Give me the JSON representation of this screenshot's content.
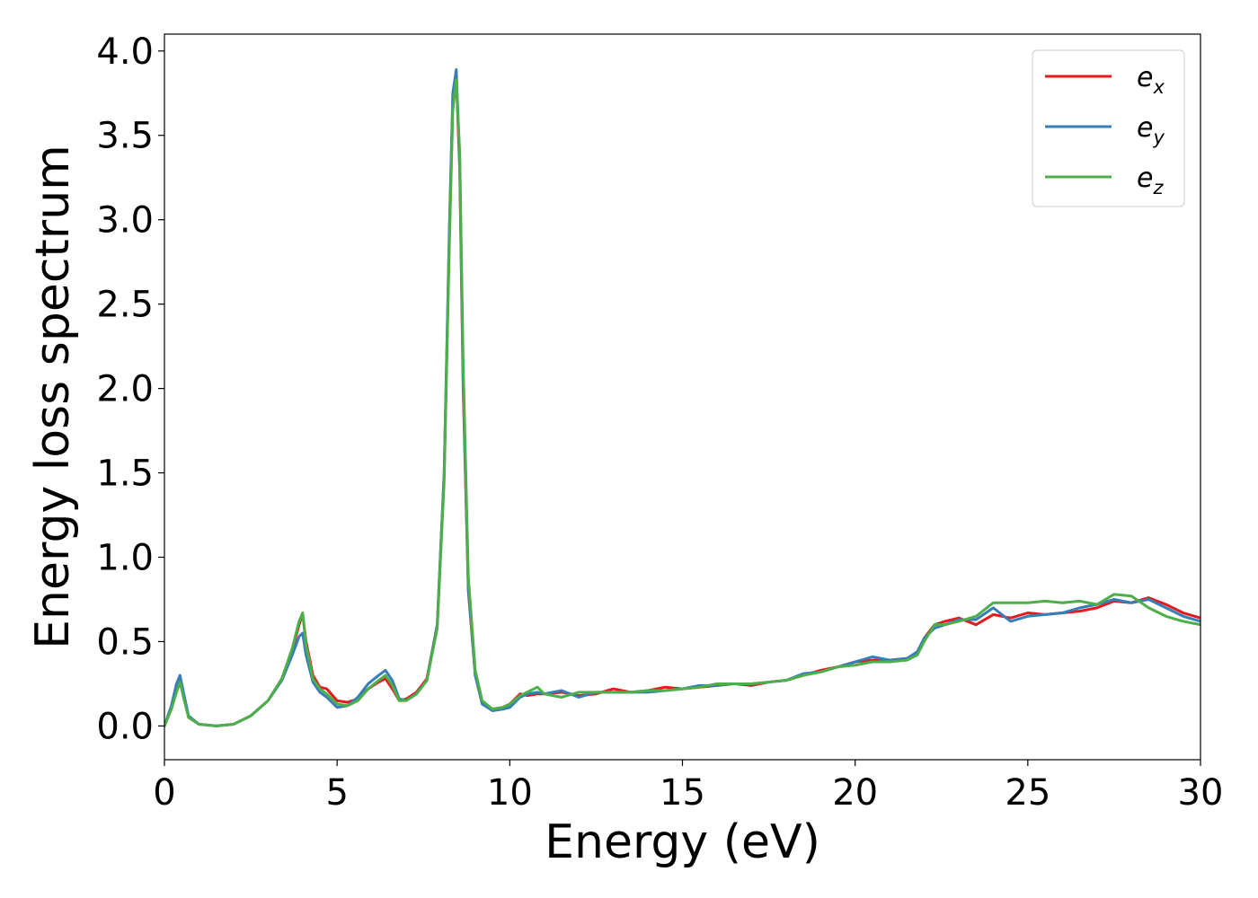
{
  "chart_data": {
    "type": "line",
    "title": "",
    "xlabel": "Energy (eV)",
    "ylabel": "Energy loss spectrum",
    "xlim": [
      0,
      30
    ],
    "ylim": [
      -0.2,
      4.1
    ],
    "xticks": [
      0,
      5,
      10,
      15,
      20,
      25,
      30
    ],
    "xtick_labels": [
      "0",
      "5",
      "10",
      "15",
      "20",
      "25",
      "30"
    ],
    "yticks": [
      0.0,
      0.5,
      1.0,
      1.5,
      2.0,
      2.5,
      3.0,
      3.5,
      4.0
    ],
    "ytick_labels": [
      "0.0",
      "0.5",
      "1.0",
      "1.5",
      "2.0",
      "2.5",
      "3.0",
      "3.5",
      "4.0"
    ],
    "grid": false,
    "legend_position": "top-right",
    "series": [
      {
        "name": "e_x",
        "legend_base": "e",
        "legend_sub": "x",
        "color": "#e41a1c",
        "x": [
          0,
          0.2,
          0.35,
          0.45,
          0.55,
          0.7,
          1.0,
          1.5,
          2.0,
          2.5,
          3.0,
          3.4,
          3.7,
          3.9,
          4.0,
          4.1,
          4.3,
          4.5,
          4.7,
          5.0,
          5.3,
          5.6,
          5.9,
          6.2,
          6.4,
          6.6,
          6.8,
          7.0,
          7.3,
          7.6,
          7.9,
          8.1,
          8.25,
          8.35,
          8.45,
          8.55,
          8.65,
          8.8,
          9.0,
          9.2,
          9.5,
          9.8,
          10.0,
          10.3,
          10.5,
          10.8,
          11.0,
          11.5,
          12.0,
          12.5,
          13.0,
          13.5,
          14.0,
          14.5,
          15.0,
          15.5,
          16.0,
          16.5,
          17.0,
          17.5,
          18.0,
          18.5,
          19.0,
          19.5,
          20.0,
          20.5,
          21.0,
          21.5,
          21.8,
          22.0,
          22.3,
          22.6,
          23.0,
          23.5,
          24.0,
          24.5,
          25.0,
          25.5,
          26.0,
          26.5,
          27.0,
          27.5,
          28.0,
          28.5,
          29.0,
          29.5,
          30.0
        ],
        "values": [
          0.0,
          0.1,
          0.22,
          0.27,
          0.18,
          0.05,
          0.01,
          0.0,
          0.01,
          0.06,
          0.15,
          0.28,
          0.45,
          0.6,
          0.67,
          0.5,
          0.3,
          0.23,
          0.22,
          0.15,
          0.14,
          0.16,
          0.22,
          0.26,
          0.28,
          0.22,
          0.15,
          0.16,
          0.2,
          0.28,
          0.6,
          1.5,
          2.9,
          3.7,
          3.85,
          3.3,
          2.0,
          0.8,
          0.3,
          0.14,
          0.1,
          0.11,
          0.13,
          0.19,
          0.18,
          0.19,
          0.19,
          0.2,
          0.18,
          0.19,
          0.22,
          0.2,
          0.21,
          0.23,
          0.22,
          0.23,
          0.24,
          0.25,
          0.24,
          0.26,
          0.27,
          0.3,
          0.33,
          0.35,
          0.38,
          0.39,
          0.39,
          0.4,
          0.43,
          0.52,
          0.6,
          0.62,
          0.64,
          0.6,
          0.66,
          0.64,
          0.67,
          0.66,
          0.67,
          0.68,
          0.7,
          0.74,
          0.73,
          0.76,
          0.72,
          0.67,
          0.64
        ]
      },
      {
        "name": "e_y",
        "legend_base": "e",
        "legend_sub": "y",
        "color": "#377eb8",
        "x": [
          0,
          0.2,
          0.35,
          0.45,
          0.55,
          0.7,
          1.0,
          1.5,
          2.0,
          2.5,
          3.0,
          3.4,
          3.7,
          3.9,
          4.0,
          4.1,
          4.3,
          4.5,
          4.7,
          5.0,
          5.3,
          5.6,
          5.9,
          6.2,
          6.4,
          6.6,
          6.8,
          7.0,
          7.3,
          7.6,
          7.9,
          8.1,
          8.25,
          8.35,
          8.45,
          8.55,
          8.65,
          8.8,
          9.0,
          9.2,
          9.5,
          9.8,
          10.0,
          10.3,
          10.5,
          10.8,
          11.0,
          11.5,
          12.0,
          12.5,
          13.0,
          13.5,
          14.0,
          14.5,
          15.0,
          15.5,
          16.0,
          16.5,
          17.0,
          17.5,
          18.0,
          18.5,
          19.0,
          19.5,
          20.0,
          20.5,
          21.0,
          21.5,
          21.8,
          22.0,
          22.3,
          22.6,
          23.0,
          23.5,
          24.0,
          24.5,
          25.0,
          25.5,
          26.0,
          26.5,
          27.0,
          27.5,
          28.0,
          28.5,
          29.0,
          29.5,
          30.0
        ],
        "values": [
          0.0,
          0.12,
          0.25,
          0.3,
          0.2,
          0.06,
          0.01,
          0.0,
          0.01,
          0.06,
          0.15,
          0.27,
          0.42,
          0.53,
          0.55,
          0.42,
          0.26,
          0.2,
          0.17,
          0.11,
          0.12,
          0.17,
          0.25,
          0.3,
          0.33,
          0.27,
          0.16,
          0.15,
          0.19,
          0.27,
          0.6,
          1.5,
          2.95,
          3.75,
          3.89,
          3.35,
          2.05,
          0.82,
          0.3,
          0.13,
          0.09,
          0.1,
          0.11,
          0.17,
          0.19,
          0.2,
          0.19,
          0.21,
          0.17,
          0.2,
          0.2,
          0.2,
          0.2,
          0.21,
          0.22,
          0.24,
          0.24,
          0.25,
          0.25,
          0.26,
          0.27,
          0.31,
          0.32,
          0.35,
          0.38,
          0.41,
          0.39,
          0.4,
          0.44,
          0.52,
          0.58,
          0.6,
          0.63,
          0.63,
          0.7,
          0.62,
          0.65,
          0.66,
          0.67,
          0.7,
          0.72,
          0.75,
          0.73,
          0.75,
          0.7,
          0.65,
          0.62
        ]
      },
      {
        "name": "e_z",
        "legend_base": "e",
        "legend_sub": "z",
        "color": "#4daf4a",
        "x": [
          0,
          0.2,
          0.35,
          0.45,
          0.55,
          0.7,
          1.0,
          1.5,
          2.0,
          2.5,
          3.0,
          3.4,
          3.7,
          3.9,
          4.0,
          4.1,
          4.3,
          4.5,
          4.7,
          5.0,
          5.3,
          5.6,
          5.9,
          6.2,
          6.4,
          6.6,
          6.8,
          7.0,
          7.3,
          7.6,
          7.9,
          8.1,
          8.25,
          8.35,
          8.45,
          8.55,
          8.65,
          8.8,
          9.0,
          9.2,
          9.5,
          9.8,
          10.0,
          10.3,
          10.5,
          10.8,
          11.0,
          11.5,
          12.0,
          12.5,
          13.0,
          13.5,
          14.0,
          14.5,
          15.0,
          15.5,
          16.0,
          16.5,
          17.0,
          17.5,
          18.0,
          18.5,
          19.0,
          19.5,
          20.0,
          20.5,
          21.0,
          21.5,
          21.8,
          22.0,
          22.3,
          22.6,
          23.0,
          23.5,
          24.0,
          24.5,
          25.0,
          25.5,
          26.0,
          26.5,
          27.0,
          27.5,
          28.0,
          28.5,
          29.0,
          29.5,
          30.0
        ],
        "values": [
          0.0,
          0.1,
          0.2,
          0.26,
          0.17,
          0.05,
          0.01,
          0.0,
          0.01,
          0.06,
          0.15,
          0.28,
          0.46,
          0.62,
          0.67,
          0.48,
          0.28,
          0.22,
          0.19,
          0.13,
          0.12,
          0.15,
          0.22,
          0.27,
          0.3,
          0.24,
          0.15,
          0.15,
          0.19,
          0.27,
          0.58,
          1.45,
          2.85,
          3.65,
          3.83,
          3.4,
          2.15,
          0.88,
          0.33,
          0.15,
          0.1,
          0.11,
          0.13,
          0.18,
          0.2,
          0.23,
          0.19,
          0.17,
          0.2,
          0.2,
          0.2,
          0.2,
          0.21,
          0.21,
          0.22,
          0.23,
          0.25,
          0.25,
          0.25,
          0.26,
          0.27,
          0.3,
          0.32,
          0.35,
          0.36,
          0.38,
          0.38,
          0.39,
          0.42,
          0.5,
          0.6,
          0.6,
          0.62,
          0.65,
          0.73,
          0.73,
          0.73,
          0.74,
          0.73,
          0.74,
          0.72,
          0.78,
          0.77,
          0.7,
          0.65,
          0.62,
          0.6
        ]
      }
    ]
  }
}
